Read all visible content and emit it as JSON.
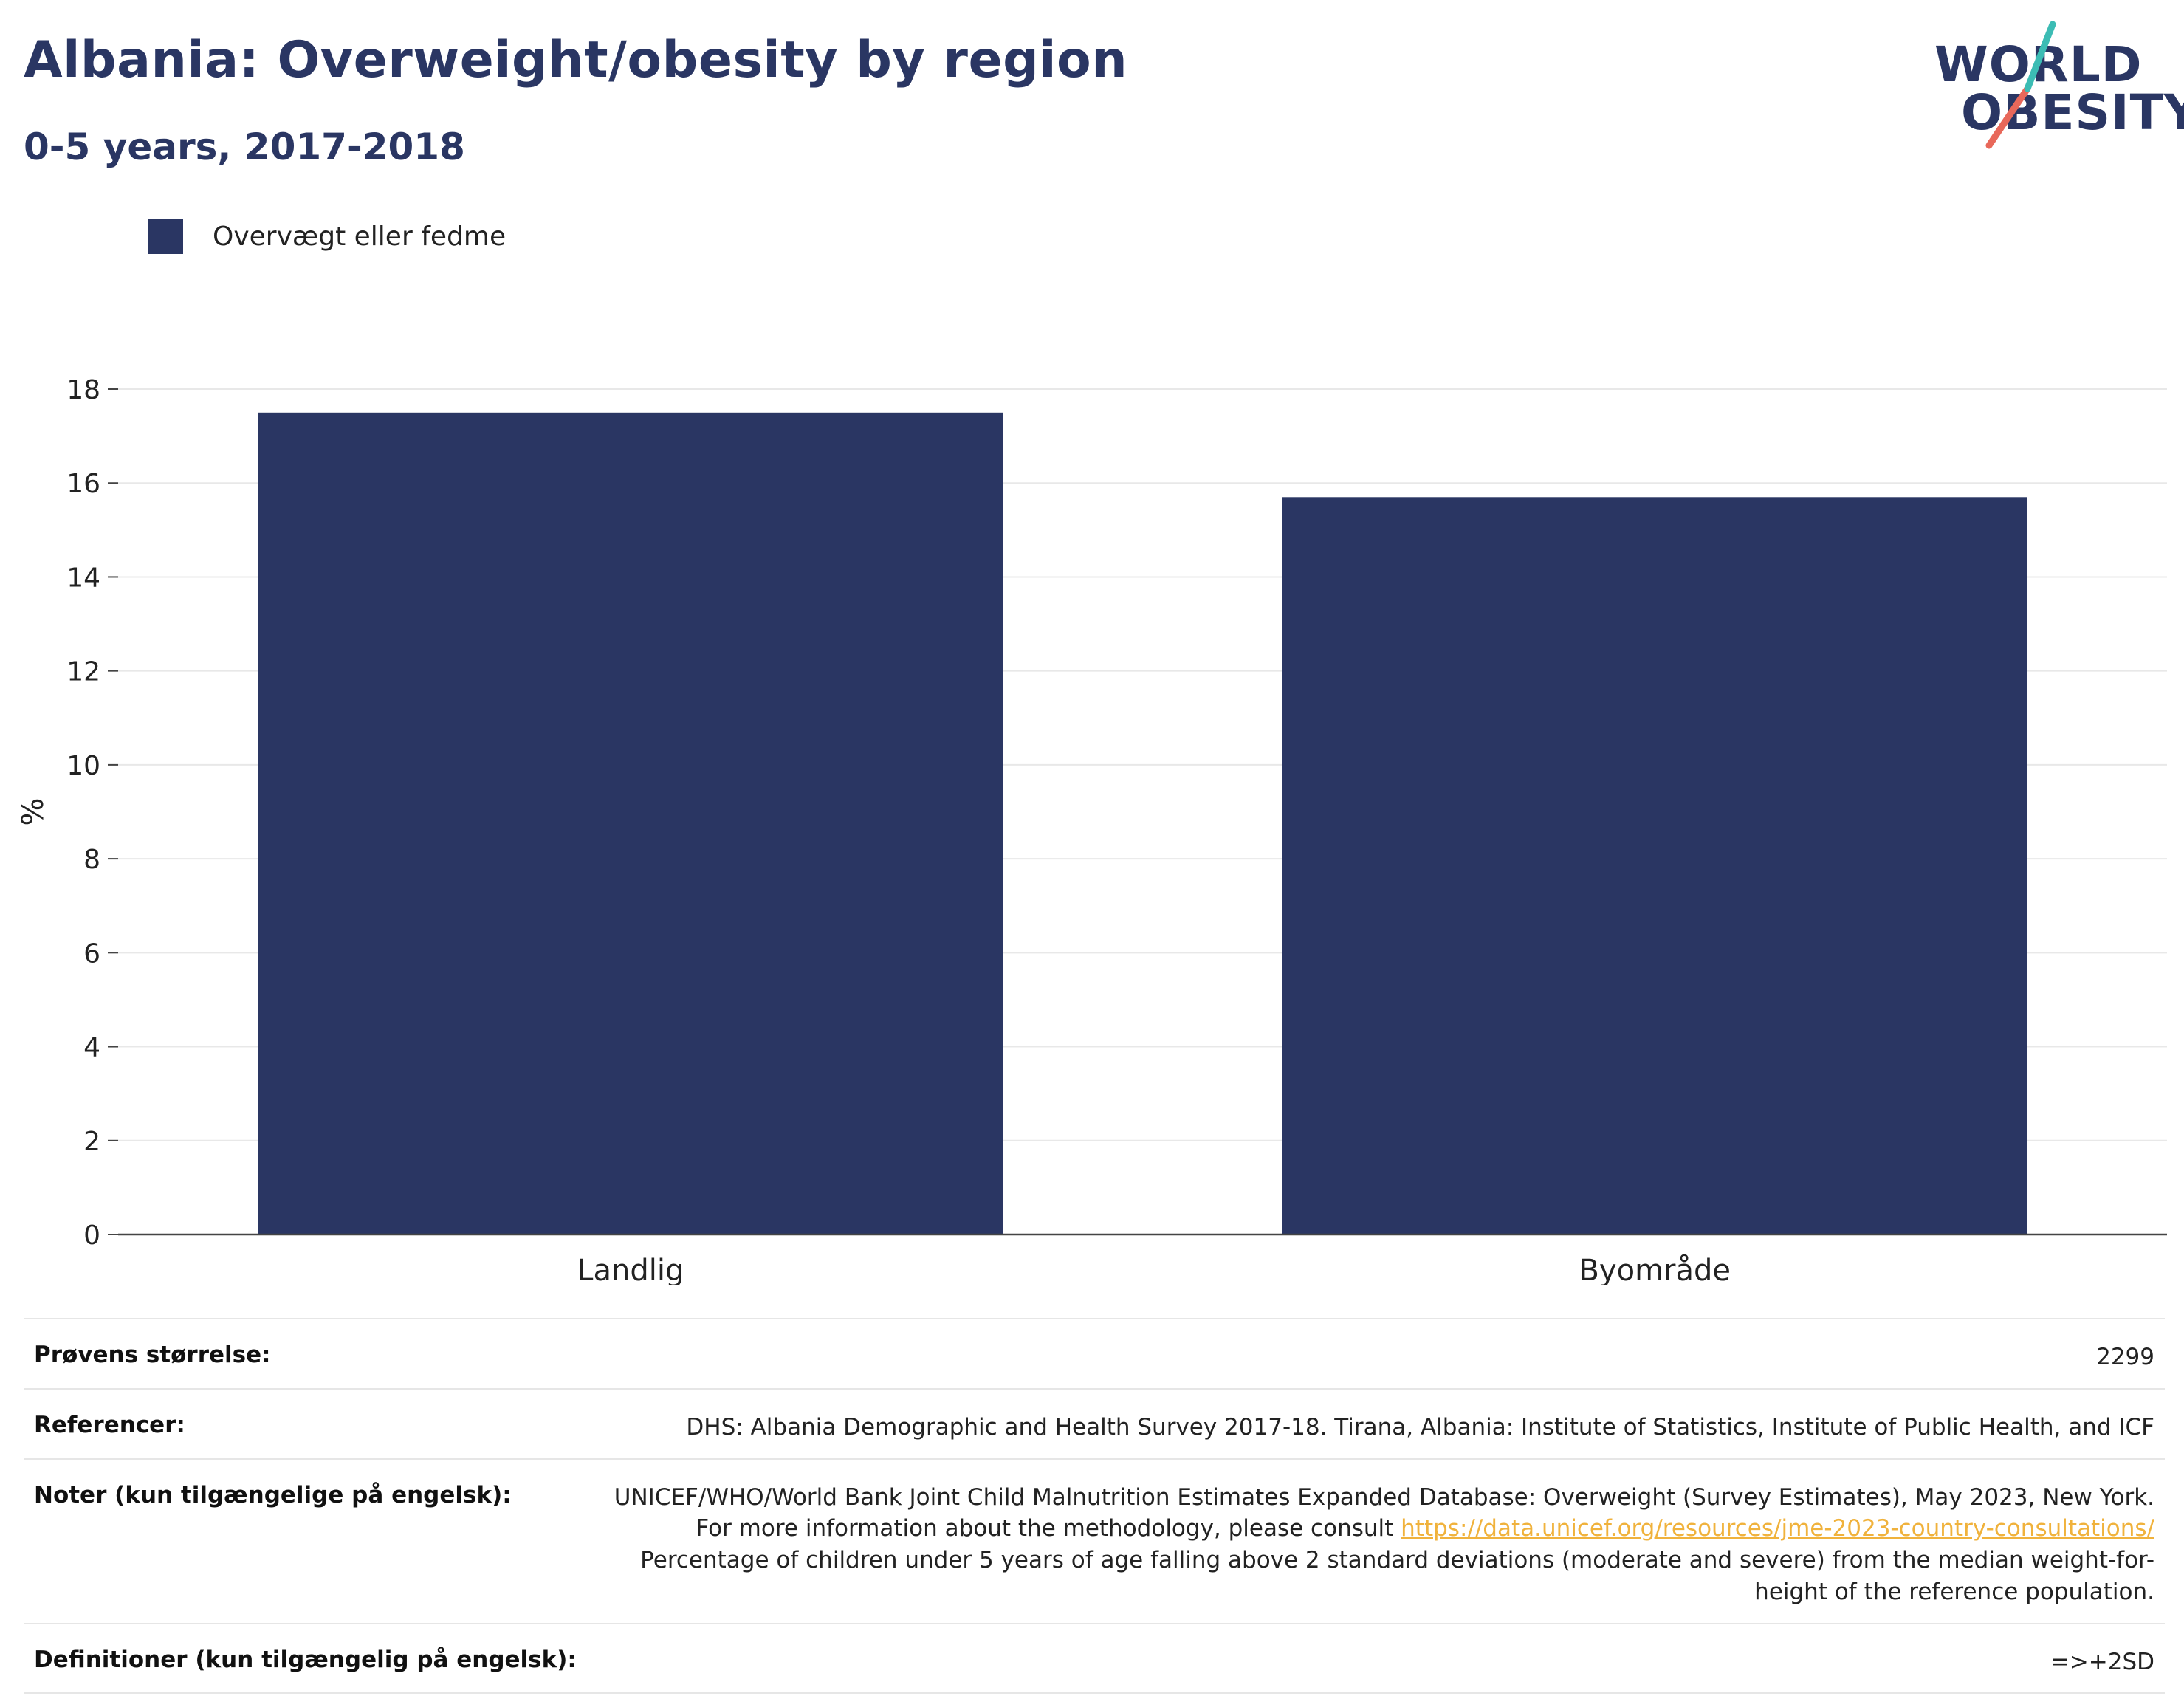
{
  "header": {
    "title": "Albania: Overweight/obesity by region",
    "subtitle": "0-5 years, 2017-2018"
  },
  "logo": {
    "line1": "WORLD",
    "line2": "OBESITY"
  },
  "colors": {
    "bar": "#2a3663",
    "logo_slash_top": "#3cbcb4",
    "logo_slash_bottom": "#e8685a"
  },
  "chart_data": {
    "type": "bar",
    "categories": [
      "Landlig",
      "Byområde"
    ],
    "series": [
      {
        "name": "Overvægt eller fedme",
        "values": [
          17.5,
          15.7
        ]
      }
    ],
    "ylabel": "%",
    "xlabel": "",
    "ylim": [
      0,
      18
    ],
    "yticks": [
      0,
      2,
      4,
      6,
      8,
      10,
      12,
      14,
      16,
      18
    ],
    "grid": true,
    "legend_position": "top-left"
  },
  "info": {
    "sample_label": "Prøvens størrelse:",
    "sample_value": "2299",
    "refs_label": "Referencer:",
    "refs_value": "DHS: Albania Demographic and Health Survey 2017-18. Tirana, Albania: Institute of Statistics, Institute of Public Health, and ICF",
    "notes_label": "Noter (kun tilgængelige på engelsk):",
    "notes_pre": "UNICEF/WHO/World Bank Joint Child Malnutrition Estimates Expanded Database: Overweight (Survey Estimates), May 2023, New York. For more information about the methodology, please consult",
    "notes_link": "https://data.unicef.org/resources/jme-2023-country-consultations/",
    "notes_post": "Percentage of children under 5 years of age falling above 2 standard deviations (moderate and severe) from the median weight-for-height of the reference population.",
    "defs_label": "Definitioner (kun tilgængelig på engelsk):",
    "defs_value": "=>+2SD"
  }
}
